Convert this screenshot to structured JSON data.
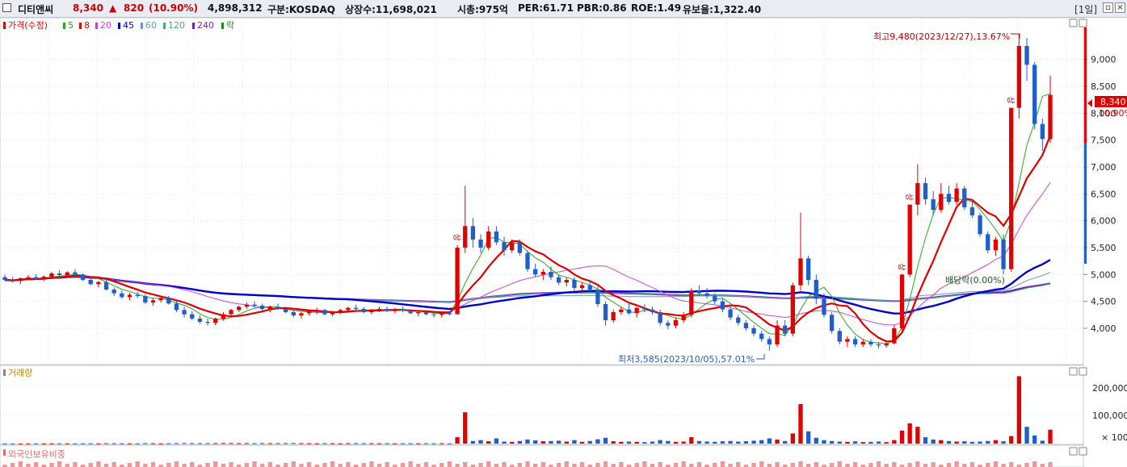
{
  "header": {
    "name": "디티앤씨",
    "price": "8,340",
    "change_arrow": "▲",
    "change": "820",
    "change_pct": "(10.90%)",
    "volume": "4,898,312",
    "market": "구분:KOSDAQ",
    "shares": "상장수:11,698,021",
    "mcap": "시총:975억",
    "per": "PER:61.71",
    "pbr": "PBR:0.86",
    "roe": "ROE:1.49",
    "float": "유보율:1,322.40",
    "period": "[1일]"
  },
  "legend": {
    "price_label": "가격(수정)",
    "ma": [
      {
        "label": "5",
        "color": "#22aa22"
      },
      {
        "label": "8",
        "color": "#e00000"
      },
      {
        "label": "20",
        "color": "#cc44cc"
      },
      {
        "label": "45",
        "color": "#0000cc"
      },
      {
        "label": "60",
        "color": "#6699cc"
      },
      {
        "label": "120",
        "color": "#44aa88"
      },
      {
        "label": "240",
        "color": "#7722aa"
      },
      {
        "label": "락",
        "color": "#228822"
      }
    ]
  },
  "annotations": {
    "high": "최고9,480(2023/12/27),13.67%",
    "low": "최저3,585(2023/10/05),57.01%",
    "dividend": "배당락(0.00%)",
    "limit_up": "상"
  },
  "price_axis": {
    "ticks": [
      "9,000",
      "8,500",
      "8,000",
      "7,500",
      "7,000",
      "6,500",
      "6,000",
      "5,500",
      "5,000",
      "4,500",
      "4,000"
    ],
    "current_label": "8,340",
    "current_pct": "10.90%"
  },
  "volume_pane": {
    "label": "거래량",
    "ticks": [
      "200,000",
      "100,000"
    ],
    "unit": "× 100"
  },
  "foreign_pane": {
    "label": "외국인보유비중"
  },
  "colors": {
    "up": "#e00000",
    "down": "#1f5fcc",
    "ma5": "#22aa22",
    "ma8": "#e00000",
    "ma20": "#cc44cc",
    "ma45": "#0000cc",
    "ma60": "#6699cc",
    "ma120": "#44aa88",
    "ma240": "#7722aa"
  },
  "chart_data": {
    "type": "candlestick",
    "y_range": [
      3400,
      9700
    ],
    "volume_range": [
      0,
      250000
    ],
    "ohlc": [
      [
        4950,
        5000,
        4880,
        4900
      ],
      [
        4900,
        4960,
        4850,
        4880
      ],
      [
        4880,
        4950,
        4820,
        4930
      ],
      [
        4930,
        4990,
        4900,
        4950
      ],
      [
        4950,
        5010,
        4900,
        4920
      ],
      [
        4920,
        4980,
        4880,
        4960
      ],
      [
        4960,
        5050,
        4930,
        5020
      ],
      [
        5020,
        5080,
        4960,
        4990
      ],
      [
        4990,
        5060,
        4950,
        5040
      ],
      [
        5040,
        5100,
        4980,
        5000
      ],
      [
        5000,
        5020,
        4880,
        4900
      ],
      [
        4900,
        4940,
        4800,
        4820
      ],
      [
        4820,
        4880,
        4760,
        4860
      ],
      [
        4860,
        4900,
        4700,
        4720
      ],
      [
        4720,
        4760,
        4600,
        4650
      ],
      [
        4650,
        4700,
        4550,
        4580
      ],
      [
        4580,
        4660,
        4520,
        4620
      ],
      [
        4620,
        4680,
        4560,
        4600
      ],
      [
        4600,
        4640,
        4450,
        4480
      ],
      [
        4480,
        4560,
        4420,
        4520
      ],
      [
        4520,
        4600,
        4480,
        4560
      ],
      [
        4560,
        4600,
        4440,
        4460
      ],
      [
        4460,
        4500,
        4300,
        4340
      ],
      [
        4340,
        4400,
        4200,
        4260
      ],
      [
        4260,
        4320,
        4150,
        4180
      ],
      [
        4180,
        4240,
        4080,
        4120
      ],
      [
        4120,
        4180,
        4050,
        4100
      ],
      [
        4100,
        4200,
        4060,
        4180
      ],
      [
        4180,
        4300,
        4140,
        4260
      ],
      [
        4260,
        4360,
        4220,
        4340
      ],
      [
        4340,
        4420,
        4300,
        4400
      ],
      [
        4400,
        4480,
        4360,
        4440
      ],
      [
        4440,
        4500,
        4380,
        4420
      ],
      [
        4420,
        4460,
        4320,
        4360
      ],
      [
        4360,
        4420,
        4300,
        4400
      ],
      [
        4400,
        4460,
        4340,
        4360
      ],
      [
        4360,
        4400,
        4280,
        4300
      ],
      [
        4300,
        4340,
        4200,
        4240
      ],
      [
        4240,
        4300,
        4180,
        4280
      ],
      [
        4280,
        4340,
        4240,
        4320
      ],
      [
        4320,
        4380,
        4260,
        4340
      ],
      [
        4340,
        4360,
        4240,
        4260
      ],
      [
        4260,
        4320,
        4220,
        4300
      ],
      [
        4300,
        4360,
        4260,
        4340
      ],
      [
        4340,
        4400,
        4300,
        4380
      ],
      [
        4380,
        4440,
        4340,
        4360
      ],
      [
        4360,
        4400,
        4280,
        4300
      ],
      [
        4300,
        4360,
        4260,
        4340
      ],
      [
        4340,
        4400,
        4300,
        4360
      ],
      [
        4360,
        4400,
        4300,
        4320
      ],
      [
        4320,
        4380,
        4280,
        4350
      ],
      [
        4350,
        4400,
        4300,
        4330
      ],
      [
        4330,
        4360,
        4260,
        4280
      ],
      [
        4280,
        4320,
        4220,
        4300
      ],
      [
        4300,
        4340,
        4240,
        4260
      ],
      [
        4260,
        4300,
        4200,
        4250
      ],
      [
        4250,
        4300,
        4200,
        4280
      ],
      [
        4280,
        4320,
        4240,
        4260
      ],
      [
        4260,
        5550,
        4260,
        5500
      ],
      [
        5500,
        6650,
        5400,
        5900
      ],
      [
        5900,
        6050,
        5500,
        5650
      ],
      [
        5650,
        5750,
        5400,
        5500
      ],
      [
        5500,
        5900,
        5450,
        5800
      ],
      [
        5800,
        5900,
        5550,
        5600
      ],
      [
        5600,
        5700,
        5350,
        5450
      ],
      [
        5450,
        5650,
        5400,
        5600
      ],
      [
        5600,
        5650,
        5350,
        5400
      ],
      [
        5400,
        5450,
        5050,
        5100
      ],
      [
        5100,
        5200,
        4950,
        5000
      ],
      [
        5000,
        5100,
        4900,
        5050
      ],
      [
        5050,
        5150,
        4900,
        4950
      ],
      [
        4950,
        5000,
        4800,
        4850
      ],
      [
        4850,
        4950,
        4780,
        4900
      ],
      [
        4900,
        4950,
        4700,
        4750
      ],
      [
        4750,
        4850,
        4650,
        4800
      ],
      [
        4800,
        4900,
        4700,
        4720
      ],
      [
        4720,
        4780,
        4400,
        4450
      ],
      [
        4450,
        4500,
        4050,
        4150
      ],
      [
        4150,
        4350,
        4100,
        4300
      ],
      [
        4300,
        4400,
        4250,
        4350
      ],
      [
        4350,
        4450,
        4250,
        4280
      ],
      [
        4280,
        4400,
        4200,
        4380
      ],
      [
        4380,
        4450,
        4300,
        4350
      ],
      [
        4350,
        4400,
        4250,
        4300
      ],
      [
        4300,
        4350,
        4050,
        4100
      ],
      [
        4100,
        4150,
        3980,
        4050
      ],
      [
        4050,
        4200,
        4000,
        4150
      ],
      [
        4150,
        4300,
        4100,
        4250
      ],
      [
        4250,
        4750,
        4200,
        4700
      ],
      [
        4700,
        4800,
        4600,
        4650
      ],
      [
        4650,
        4750,
        4550,
        4600
      ],
      [
        4600,
        4650,
        4450,
        4500
      ],
      [
        4500,
        4550,
        4300,
        4350
      ],
      [
        4350,
        4400,
        4150,
        4200
      ],
      [
        4200,
        4250,
        4050,
        4100
      ],
      [
        4100,
        4150,
        3950,
        4000
      ],
      [
        4000,
        4050,
        3850,
        3900
      ],
      [
        3900,
        3950,
        3750,
        3800
      ],
      [
        3800,
        3850,
        3585,
        3700
      ],
      [
        3700,
        4150,
        3650,
        4050
      ],
      [
        4050,
        4150,
        3850,
        3900
      ],
      [
        3900,
        4850,
        3850,
        4800
      ],
      [
        4800,
        6150,
        4700,
        5300
      ],
      [
        5300,
        5350,
        4800,
        4900
      ],
      [
        4900,
        5000,
        4450,
        4550
      ],
      [
        4550,
        4650,
        4200,
        4250
      ],
      [
        4250,
        4300,
        3900,
        3950
      ],
      [
        3950,
        4000,
        3700,
        3750
      ],
      [
        3750,
        3850,
        3650,
        3800
      ],
      [
        3800,
        3850,
        3650,
        3700
      ],
      [
        3700,
        3800,
        3650,
        3750
      ],
      [
        3750,
        3800,
        3650,
        3700
      ],
      [
        3700,
        3750,
        3620,
        3680
      ],
      [
        3680,
        3750,
        3640,
        3720
      ],
      [
        3720,
        4050,
        3700,
        4000
      ],
      [
        4000,
        5000,
        3950,
        5000
      ],
      [
        5000,
        6300,
        4950,
        6300
      ],
      [
        6300,
        7050,
        6100,
        6700
      ],
      [
        6700,
        6800,
        6300,
        6400
      ],
      [
        6400,
        6550,
        6100,
        6200
      ],
      [
        6200,
        6700,
        6150,
        6500
      ],
      [
        6500,
        6650,
        6300,
        6350
      ],
      [
        6350,
        6700,
        6300,
        6600
      ],
      [
        6600,
        6650,
        6200,
        6250
      ],
      [
        6250,
        6400,
        6050,
        6100
      ],
      [
        6100,
        6150,
        5700,
        5750
      ],
      [
        5750,
        5800,
        5400,
        5450
      ],
      [
        5450,
        5700,
        5350,
        5650
      ],
      [
        5650,
        5750,
        5000,
        5100
      ],
      [
        5100,
        8100,
        5050,
        8100
      ],
      [
        8100,
        9480,
        7900,
        9250
      ],
      [
        9250,
        9400,
        8600,
        8900
      ],
      [
        8900,
        8950,
        7700,
        7800
      ],
      [
        7800,
        7900,
        7300,
        7520
      ],
      [
        7520,
        8700,
        7450,
        8340
      ]
    ],
    "volume": [
      600,
      700,
      500,
      800,
      600,
      700,
      900,
      1200,
      800,
      700,
      900,
      1100,
      800,
      1500,
      1300,
      1000,
      900,
      800,
      1600,
      1200,
      900,
      1100,
      1700,
      2100,
      1800,
      1500,
      1400,
      1600,
      2000,
      1800,
      1500,
      1700,
      1400,
      1600,
      1300,
      1500,
      1900,
      2200,
      1600,
      1400,
      1200,
      1500,
      1300,
      1100,
      1400,
      1600,
      1300,
      1200,
      1100,
      1300,
      1000,
      1200,
      1400,
      1100,
      1300,
      1000,
      1200,
      900,
      22000,
      108000,
      9000,
      12000,
      8000,
      18000,
      7000,
      6000,
      9000,
      14000,
      11000,
      8000,
      9000,
      10000,
      7000,
      12000,
      6000,
      9000,
      15000,
      20000,
      8000,
      6000,
      7000,
      6000,
      5000,
      7000,
      12000,
      9000,
      6000,
      7000,
      22000,
      9000,
      7000,
      6000,
      8000,
      9000,
      7000,
      8000,
      10000,
      12000,
      18000,
      14000,
      9000,
      35000,
      136000,
      42000,
      20000,
      12000,
      9000,
      7000,
      6000,
      8000,
      5000,
      6000,
      7000,
      5000,
      12000,
      45000,
      70000,
      58000,
      22000,
      14000,
      12000,
      9000,
      7000,
      8000,
      6000,
      7000,
      9000,
      12000,
      8000,
      26000,
      232000,
      58000,
      28000,
      10000,
      48000
    ]
  }
}
